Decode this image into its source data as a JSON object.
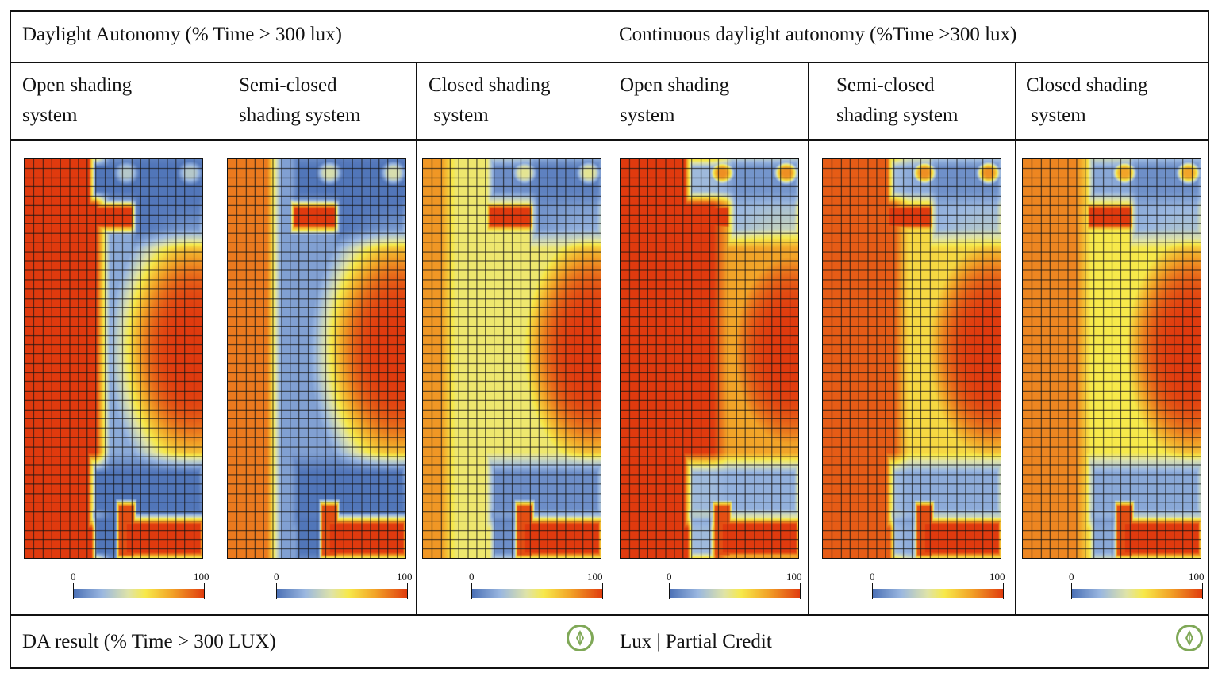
{
  "headers": {
    "da_title": "Daylight Autonomy (% Time > 300 lux)",
    "cda_title": "Continuous daylight autonomy (%Time >300 lux)"
  },
  "columns": [
    {
      "line1": "Open shading",
      "line2": "system"
    },
    {
      "line1": "Semi-closed",
      "line2": "shading system"
    },
    {
      "line1": "Closed shading",
      "line2": " system"
    },
    {
      "line1": "Open shading",
      "line2": "system"
    },
    {
      "line1": "Semi-closed",
      "line2": "shading system"
    },
    {
      "line1": "Closed shading",
      "line2": " system"
    }
  ],
  "legend": {
    "min": "0",
    "max": "100"
  },
  "footer": {
    "da_result": "DA result (% Time > 300 LUX)",
    "cda_result": "Lux | Partial Credit"
  },
  "icons": [
    "north-arrow-icon",
    "north-arrow-icon"
  ],
  "colors": {
    "low": "#4a6fb5",
    "mid": "#f7e94a",
    "high": "#e03a0e",
    "north_icon": "#7fa857"
  }
}
